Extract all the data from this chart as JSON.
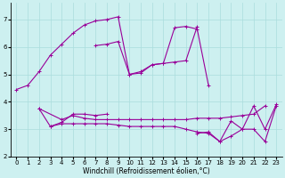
{
  "xlabel": "Windchill (Refroidissement éolien,°C)",
  "bg_color": "#cdf0f0",
  "line_color": "#990099",
  "grid_color": "#aadddd",
  "xlim": [
    -0.5,
    23.5
  ],
  "ylim": [
    2.0,
    7.6
  ],
  "xticks": [
    0,
    1,
    2,
    3,
    4,
    5,
    6,
    7,
    8,
    9,
    10,
    11,
    12,
    13,
    14,
    15,
    16,
    17,
    18,
    19,
    20,
    21,
    22,
    23
  ],
  "yticks": [
    2,
    3,
    4,
    5,
    6,
    7
  ],
  "series": [
    [
      0,
      4.45,
      1,
      4.6,
      2,
      5.1,
      3,
      5.7,
      4,
      6.1,
      5,
      6.5,
      6,
      6.8,
      7,
      6.95,
      8,
      7.0,
      9,
      7.1,
      10,
      5.0,
      11,
      5.05,
      12,
      5.35,
      13,
      5.4,
      14,
      5.45,
      15,
      5.5,
      16,
      6.75
    ],
    [
      7,
      6.05,
      8,
      6.1,
      9,
      6.2,
      10,
      5.0,
      11,
      5.1,
      12,
      5.35,
      13,
      5.4,
      14,
      6.7,
      15,
      6.75,
      16,
      6.65,
      17,
      4.6
    ],
    [
      2,
      3.75,
      3,
      3.1,
      4,
      3.25,
      5,
      3.55,
      6,
      3.55,
      7,
      3.5,
      8,
      3.55
    ],
    [
      2,
      3.75,
      4,
      3.35,
      5,
      3.5,
      6,
      3.4,
      7,
      3.35,
      8,
      3.35,
      9,
      3.35,
      10,
      3.35,
      11,
      3.35,
      12,
      3.35,
      13,
      3.35,
      14,
      3.35,
      15,
      3.35,
      16,
      3.4,
      17,
      3.4,
      18,
      3.4,
      19,
      3.45,
      20,
      3.5,
      21,
      3.55,
      22,
      3.85
    ],
    [
      3,
      3.1,
      4,
      3.2,
      5,
      3.2,
      6,
      3.2,
      7,
      3.2,
      8,
      3.2,
      9,
      3.15,
      10,
      3.1,
      11,
      3.1,
      12,
      3.1,
      13,
      3.1,
      14,
      3.1,
      15,
      3.0,
      16,
      2.9,
      17,
      2.85,
      18,
      2.55,
      19,
      2.75,
      20,
      3.0,
      21,
      3.0,
      22,
      2.55,
      23,
      3.85
    ],
    [
      16,
      2.85,
      17,
      2.9,
      18,
      2.55,
      19,
      3.3,
      20,
      3.0,
      21,
      3.85,
      22,
      3.0,
      23,
      3.9
    ]
  ]
}
